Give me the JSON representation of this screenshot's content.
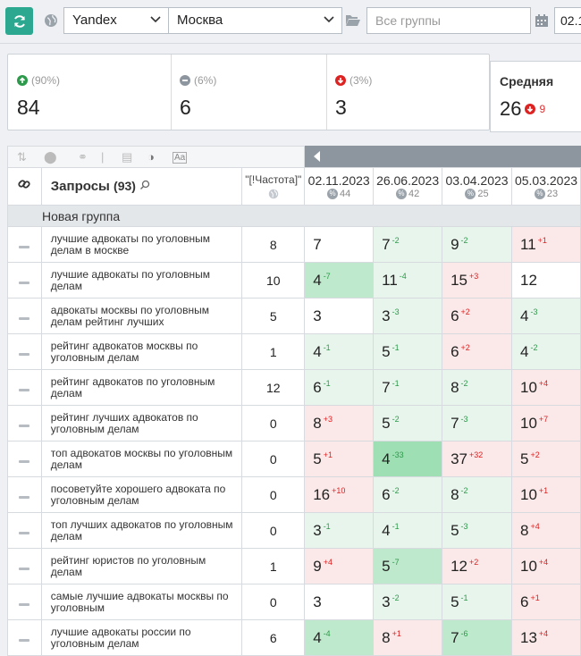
{
  "toolbar": {
    "engine": "Yandex",
    "region": "Москва",
    "groups_placeholder": "Все группы",
    "date_value": "02.1"
  },
  "stats": {
    "up": {
      "pct": "(90%)",
      "value": "84"
    },
    "same": {
      "pct": "(6%)",
      "value": "6"
    },
    "down": {
      "pct": "(3%)",
      "value": "3"
    },
    "avg": {
      "title": "Средняя",
      "value": "26",
      "delta": "9"
    }
  },
  "colors": {
    "accent": "#2ba88f",
    "up": "#2c9a4a",
    "down": "#d22"
  },
  "table": {
    "query_header": "Запросы",
    "query_count": "(93)",
    "freq_header": "\"[!Частота]\"",
    "dates": [
      {
        "date": "02.11.2023",
        "count": "44"
      },
      {
        "date": "26.06.2023",
        "count": "42"
      },
      {
        "date": "03.04.2023",
        "count": "25"
      },
      {
        "date": "05.03.2023",
        "count": "23"
      }
    ],
    "group_name": "Новая группа",
    "rows": [
      {
        "q": "лучшие адвокаты по уголовным делам в москве",
        "f": "8",
        "c": [
          {
            "p": "7",
            "d": "",
            "t": "n"
          },
          {
            "p": "7",
            "d": "-2",
            "t": "lu"
          },
          {
            "p": "9",
            "d": "-2",
            "t": "lu"
          },
          {
            "p": "11",
            "d": "+1",
            "t": "ld"
          }
        ]
      },
      {
        "q": "лучшие адвокаты по уголовным делам",
        "f": "10",
        "c": [
          {
            "p": "4",
            "d": "-7",
            "t": "mu"
          },
          {
            "p": "11",
            "d": "-4",
            "t": "lu"
          },
          {
            "p": "15",
            "d": "+3",
            "t": "ld"
          },
          {
            "p": "12",
            "d": "",
            "t": "n"
          }
        ]
      },
      {
        "q": "адвокаты москвы по уголовным делам рейтинг лучших",
        "f": "5",
        "c": [
          {
            "p": "3",
            "d": "",
            "t": "n"
          },
          {
            "p": "3",
            "d": "-3",
            "t": "lu"
          },
          {
            "p": "6",
            "d": "+2",
            "t": "ld"
          },
          {
            "p": "4",
            "d": "-3",
            "t": "lu"
          }
        ]
      },
      {
        "q": "рейтинг адвокатов москвы по уголовным делам",
        "f": "1",
        "c": [
          {
            "p": "4",
            "d": "-1",
            "t": "lu"
          },
          {
            "p": "5",
            "d": "-1",
            "t": "lu"
          },
          {
            "p": "6",
            "d": "+2",
            "t": "ld"
          },
          {
            "p": "4",
            "d": "-2",
            "t": "lu"
          }
        ]
      },
      {
        "q": "рейтинг адвокатов по уголовным делам",
        "f": "12",
        "c": [
          {
            "p": "6",
            "d": "-1",
            "t": "lu"
          },
          {
            "p": "7",
            "d": "-1",
            "t": "lu"
          },
          {
            "p": "8",
            "d": "-2",
            "t": "lu"
          },
          {
            "p": "10",
            "d": "+4",
            "t": "ld"
          }
        ]
      },
      {
        "q": "рейтинг лучших адвокатов по уголовным делам",
        "f": "0",
        "c": [
          {
            "p": "8",
            "d": "+3",
            "t": "ld"
          },
          {
            "p": "5",
            "d": "-2",
            "t": "lu"
          },
          {
            "p": "7",
            "d": "-3",
            "t": "lu"
          },
          {
            "p": "10",
            "d": "+7",
            "t": "ld"
          }
        ]
      },
      {
        "q": "топ адвокатов москвы по уголовным делам",
        "f": "0",
        "c": [
          {
            "p": "5",
            "d": "+1",
            "t": "ld"
          },
          {
            "p": "4",
            "d": "-33",
            "t": "su"
          },
          {
            "p": "37",
            "d": "+32",
            "t": "ld"
          },
          {
            "p": "5",
            "d": "+2",
            "t": "ld"
          }
        ]
      },
      {
        "q": "посоветуйте хорошего адвоката по уголовным делам",
        "f": "0",
        "c": [
          {
            "p": "16",
            "d": "+10",
            "t": "ld"
          },
          {
            "p": "6",
            "d": "-2",
            "t": "lu"
          },
          {
            "p": "8",
            "d": "-2",
            "t": "lu"
          },
          {
            "p": "10",
            "d": "+1",
            "t": "ld"
          }
        ]
      },
      {
        "q": "топ лучших адвокатов по уголовным делам",
        "f": "0",
        "c": [
          {
            "p": "3",
            "d": "-1",
            "t": "lu"
          },
          {
            "p": "4",
            "d": "-1",
            "t": "lu"
          },
          {
            "p": "5",
            "d": "-3",
            "t": "lu"
          },
          {
            "p": "8",
            "d": "+4",
            "t": "ld"
          }
        ]
      },
      {
        "q": "рейтинг юристов по уголовным делам",
        "f": "1",
        "c": [
          {
            "p": "9",
            "d": "+4",
            "t": "ld"
          },
          {
            "p": "5",
            "d": "-7",
            "t": "mu"
          },
          {
            "p": "12",
            "d": "+2",
            "t": "ld"
          },
          {
            "p": "10",
            "d": "+4",
            "t": "ld"
          }
        ]
      },
      {
        "q": "самые лучшие адвокаты москвы по уголовным",
        "f": "0",
        "c": [
          {
            "p": "3",
            "d": "",
            "t": "n"
          },
          {
            "p": "3",
            "d": "-2",
            "t": "lu"
          },
          {
            "p": "5",
            "d": "-1",
            "t": "lu"
          },
          {
            "p": "6",
            "d": "+1",
            "t": "ld"
          }
        ]
      },
      {
        "q": "лучшие адвокаты россии по уголовным делам",
        "f": "6",
        "c": [
          {
            "p": "4",
            "d": "-4",
            "t": "mu"
          },
          {
            "p": "8",
            "d": "+1",
            "t": "ld"
          },
          {
            "p": "7",
            "d": "-6",
            "t": "mu"
          },
          {
            "p": "13",
            "d": "+4",
            "t": "ld"
          }
        ]
      }
    ]
  }
}
